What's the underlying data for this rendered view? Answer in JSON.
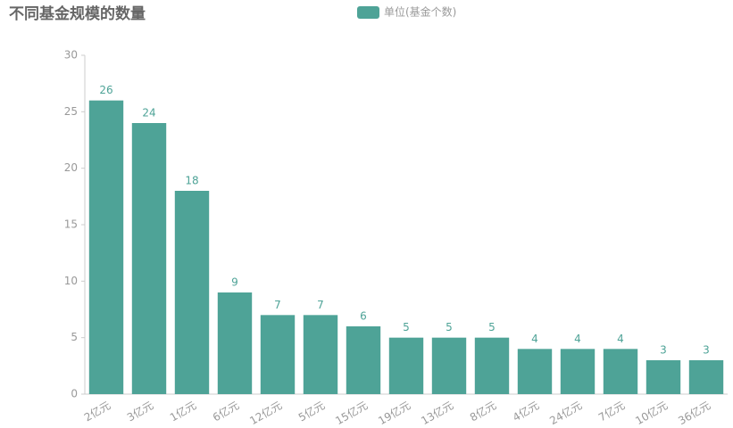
{
  "chart_data": {
    "type": "bar",
    "title": "不同基金规模的数量",
    "categories": [
      "2亿元",
      "3亿元",
      "1亿元",
      "6亿元",
      "12亿元",
      "5亿元",
      "15亿元",
      "19亿元",
      "13亿元",
      "8亿元",
      "4亿元",
      "24亿元",
      "7亿元",
      "10亿元",
      "36亿元"
    ],
    "series": [
      {
        "name": "单位(基金个数)",
        "color": "#4ea397",
        "values": [
          26,
          24,
          18,
          9,
          7,
          7,
          6,
          5,
          5,
          5,
          4,
          4,
          4,
          3,
          3
        ]
      }
    ],
    "ylim": [
      0,
      30
    ],
    "yticks": [
      0,
      5,
      10,
      15,
      20,
      25,
      30
    ],
    "grid": false,
    "legend": "top"
  }
}
